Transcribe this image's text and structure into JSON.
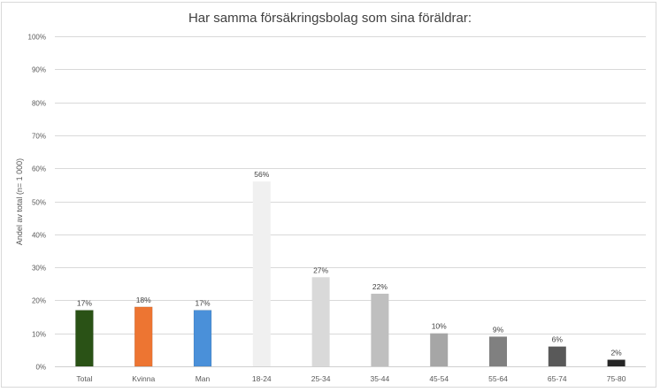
{
  "chart_data": {
    "type": "bar",
    "title": "Har samma försäkringsbolag som sina föräldrar:",
    "xlabel": "",
    "ylabel": "Andel av total (n= 1 000)",
    "ylim": [
      0,
      100
    ],
    "yticks": [
      "0%",
      "10%",
      "20%",
      "30%",
      "40%",
      "50%",
      "60%",
      "70%",
      "80%",
      "90%",
      "100%"
    ],
    "grid": true,
    "legend": "none",
    "categories": [
      "Total",
      "Kvinna",
      "Man",
      "18-24",
      "25-34",
      "35-44",
      "45-54",
      "55-64",
      "65-74",
      "75-80"
    ],
    "values": [
      17,
      18,
      17,
      56,
      27,
      22,
      10,
      9,
      6,
      2
    ],
    "data_labels": [
      "17%",
      "18%",
      "17%",
      "56%",
      "27%",
      "22%",
      "10%",
      "9%",
      "6%",
      "2%"
    ],
    "colors": [
      "#2a5216",
      "#ed7532",
      "#4a90d9",
      "#f0f0f0",
      "#d9d9d9",
      "#bfbfbf",
      "#a6a6a6",
      "#808080",
      "#595959",
      "#262626"
    ]
  }
}
